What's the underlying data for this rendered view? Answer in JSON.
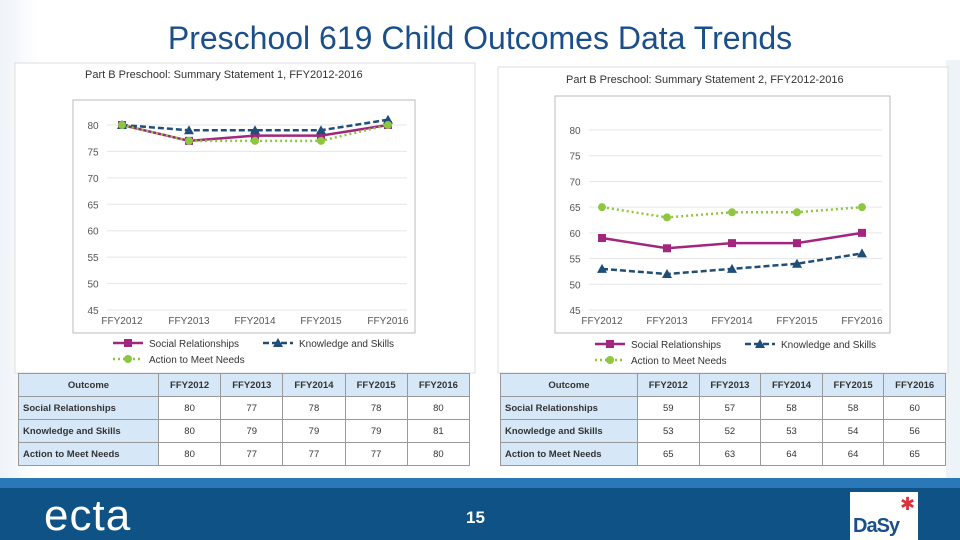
{
  "slide": {
    "title": "Preschool 619 Child Outcomes Data Trends",
    "page_number": "15",
    "logo_left": "ecta",
    "logo_right": "DaSy"
  },
  "colors": {
    "social": "#a3267e",
    "knowledge": "#1f4e79",
    "action": "#8dc63f",
    "title": "#1a4f8c",
    "footer": "#0e5286"
  },
  "chart_data": [
    {
      "type": "line",
      "title": "Part B Preschool: Summary Statement 1, FFY2012-2016",
      "categories": [
        "FFY2012",
        "FFY2013",
        "FFY2014",
        "FFY2015",
        "FFY2016"
      ],
      "yticks": [
        45,
        50,
        55,
        60,
        65,
        70,
        75,
        80
      ],
      "ylim": [
        45,
        80
      ],
      "grid": true,
      "legend": "bottom",
      "series": [
        {
          "name": "Social Relationships",
          "values": [
            80,
            77,
            78,
            78,
            80
          ],
          "marker": "square",
          "line": "solid"
        },
        {
          "name": "Knowledge and Skills",
          "values": [
            80,
            79,
            79,
            79,
            81
          ],
          "marker": "triangle",
          "line": "dashed"
        },
        {
          "name": "Action to Meet Needs",
          "values": [
            80,
            77,
            77,
            77,
            80
          ],
          "marker": "circle",
          "line": "dotted"
        }
      ]
    },
    {
      "type": "line",
      "title": "Part B Preschool: Summary Statement 2, FFY2012-2016",
      "categories": [
        "FFY2012",
        "FFY2013",
        "FFY2014",
        "FFY2015",
        "FFY2016"
      ],
      "yticks": [
        45,
        50,
        55,
        60,
        65,
        70,
        75,
        80
      ],
      "ylim": [
        45,
        80
      ],
      "grid": true,
      "legend": "bottom",
      "series": [
        {
          "name": "Social Relationships",
          "values": [
            59,
            57,
            58,
            58,
            60
          ],
          "marker": "square",
          "line": "solid"
        },
        {
          "name": "Knowledge and Skills",
          "values": [
            53,
            52,
            53,
            54,
            56
          ],
          "marker": "triangle",
          "line": "dashed"
        },
        {
          "name": "Action to Meet Needs",
          "values": [
            65,
            63,
            64,
            64,
            65
          ],
          "marker": "circle",
          "line": "dotted"
        }
      ]
    }
  ],
  "tables": [
    {
      "header": [
        "Outcome",
        "FFY2012",
        "FFY2013",
        "FFY2014",
        "FFY2015",
        "FFY2016"
      ],
      "rows": [
        [
          "Social Relationships",
          "80",
          "77",
          "78",
          "78",
          "80"
        ],
        [
          "Knowledge and Skills",
          "80",
          "79",
          "79",
          "79",
          "81"
        ],
        [
          "Action to Meet Needs",
          "80",
          "77",
          "77",
          "77",
          "80"
        ]
      ]
    },
    {
      "header": [
        "Outcome",
        "FFY2012",
        "FFY2013",
        "FFY2014",
        "FFY2015",
        "FFY2016"
      ],
      "rows": [
        [
          "Social Relationships",
          "59",
          "57",
          "58",
          "58",
          "60"
        ],
        [
          "Knowledge and Skills",
          "53",
          "52",
          "53",
          "54",
          "56"
        ],
        [
          "Action to Meet Needs",
          "65",
          "63",
          "64",
          "64",
          "65"
        ]
      ]
    }
  ]
}
